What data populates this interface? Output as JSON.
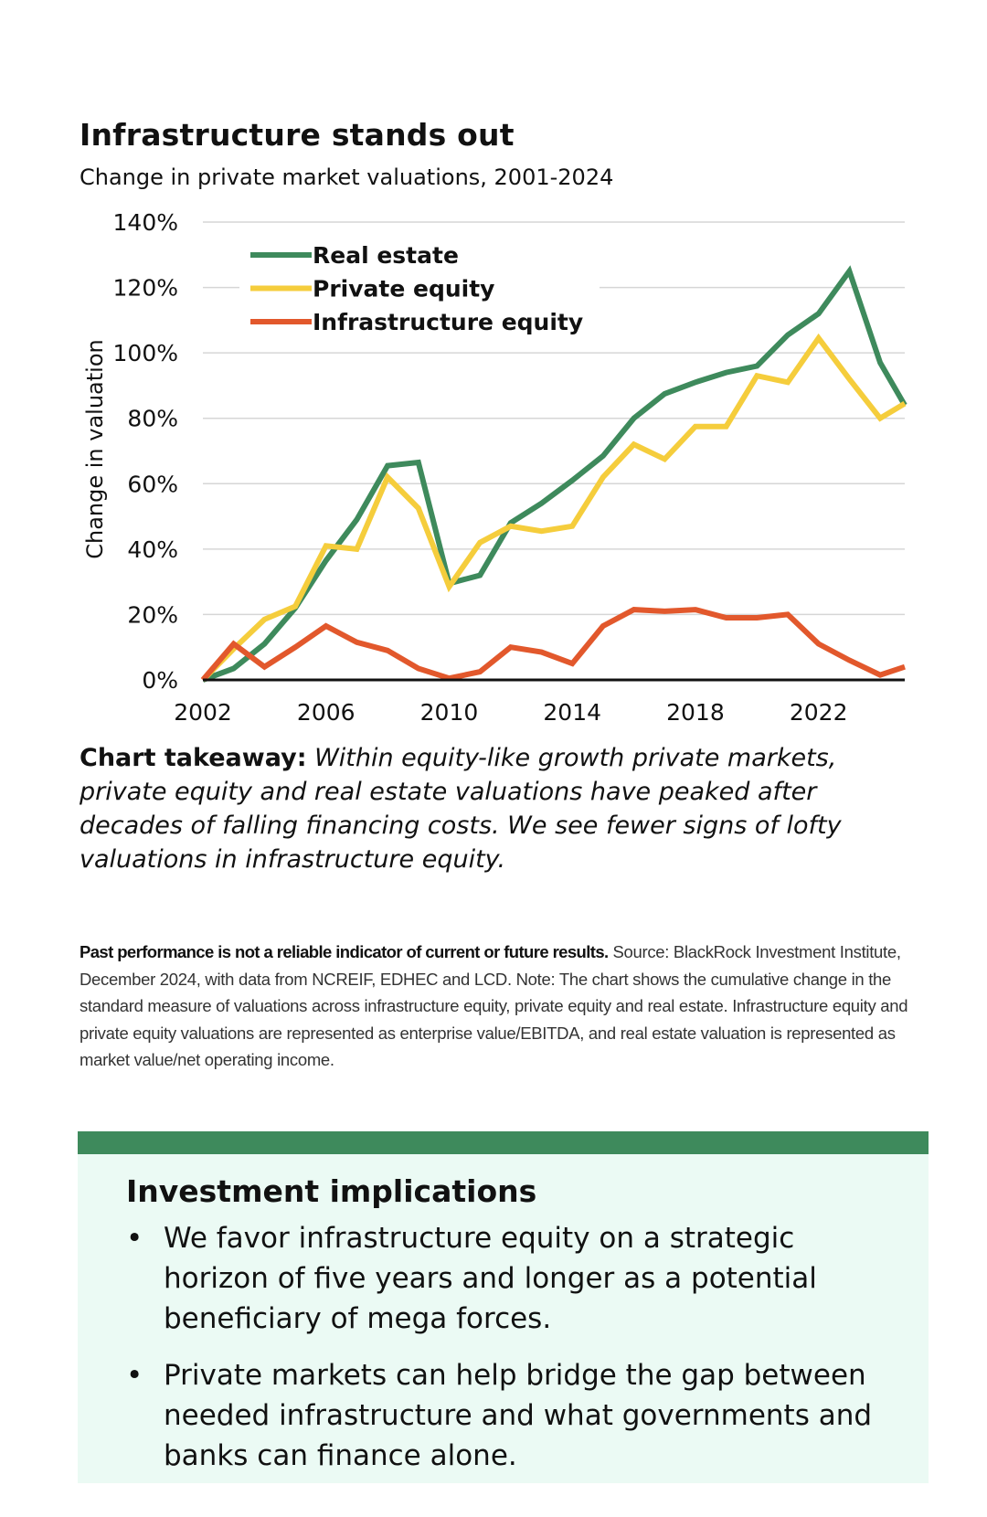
{
  "title": "Infrastructure stands out",
  "subtitle": "Change in private market valuations, 2001-2024",
  "colors": {
    "real_estate": "#3e8a5c",
    "private_equity": "#f5cd3c",
    "infrastructure_equity": "#e2582c",
    "box_bar": "#3e8a5c",
    "box_bg": "#ebfaf4",
    "gridline": "#d6d6d6",
    "axis": "#111111"
  },
  "chart_data": {
    "type": "line",
    "title": "Infrastructure stands out",
    "subtitle": "Change in private market valuations, 2001-2024",
    "xlabel": "",
    "ylabel": "Change in valuation",
    "xlim": [
      2002,
      2024.8
    ],
    "ylim": [
      0,
      140
    ],
    "x_ticks": [
      2002,
      2006,
      2010,
      2014,
      2018,
      2022
    ],
    "x_tick_labels": [
      "2002",
      "2006",
      "2010",
      "2014",
      "2018",
      "2022"
    ],
    "y_ticks": [
      0,
      20,
      40,
      60,
      80,
      100,
      120,
      140
    ],
    "y_tick_labels": [
      "0%",
      "20%",
      "40%",
      "60%",
      "80%",
      "100%",
      "120%",
      "140%"
    ],
    "grid": true,
    "legend_position": "top-left",
    "x": [
      2002,
      2003,
      2004,
      2005,
      2006,
      2007,
      2008,
      2009,
      2010,
      2011,
      2012,
      2013,
      2014,
      2015,
      2016,
      2017,
      2018,
      2019,
      2020,
      2021,
      2022,
      2023,
      2024,
      2024.8
    ],
    "series": [
      {
        "name": "Real estate",
        "color_key": "real_estate",
        "values": [
          0,
          3.5,
          11,
          22,
          36.5,
          49,
          65.5,
          66.5,
          29.5,
          32,
          48,
          54,
          61,
          68.5,
          80,
          87.5,
          91,
          94,
          96,
          105.5,
          112,
          125,
          97,
          84
        ]
      },
      {
        "name": "Private equity",
        "color_key": "private_equity",
        "values": [
          0,
          9.5,
          18.5,
          22.5,
          41,
          40,
          62,
          52.5,
          28.5,
          42,
          47,
          45.5,
          47,
          62,
          72,
          67.5,
          77.5,
          77.5,
          93,
          91,
          104.5,
          92,
          80,
          84.5
        ]
      },
      {
        "name": "Infrastructure equity",
        "color_key": "infrastructure_equity",
        "values": [
          0,
          11,
          4,
          10,
          16.5,
          11.5,
          9,
          3.5,
          0.5,
          2.5,
          10,
          8.5,
          5,
          16.5,
          21.5,
          21,
          21.5,
          19,
          19,
          20,
          11,
          6,
          1.5,
          4
        ]
      }
    ]
  },
  "takeaway": {
    "lead": "Chart takeaway:",
    "body": "Within equity-like growth private markets, private equity and real estate valuations have peaked after decades of falling financing costs. We see fewer signs of lofty valuations in infrastructure equity."
  },
  "source": {
    "strong": "Past performance is not a reliable indicator of current or future results.",
    "text": "Source: BlackRock Investment Institute, December 2024, with data from NCREIF, EDHEC and LCD. Note: The chart shows the cumulative change in the standard measure of valuations across infrastructure equity, private equity and real estate. Infrastructure equity and private equity valuations are represented as enterprise value/EBITDA, and real estate valuation is represented as market value/net operating income."
  },
  "implications": {
    "title": "Investment implications",
    "bullet_glyph": "•",
    "bullets": [
      "We favor infrastructure equity on a strategic horizon of five years and longer as a potential beneficiary of mega forces.",
      "Private markets can help bridge the gap between needed infrastructure and what governments and banks can finance alone."
    ]
  }
}
